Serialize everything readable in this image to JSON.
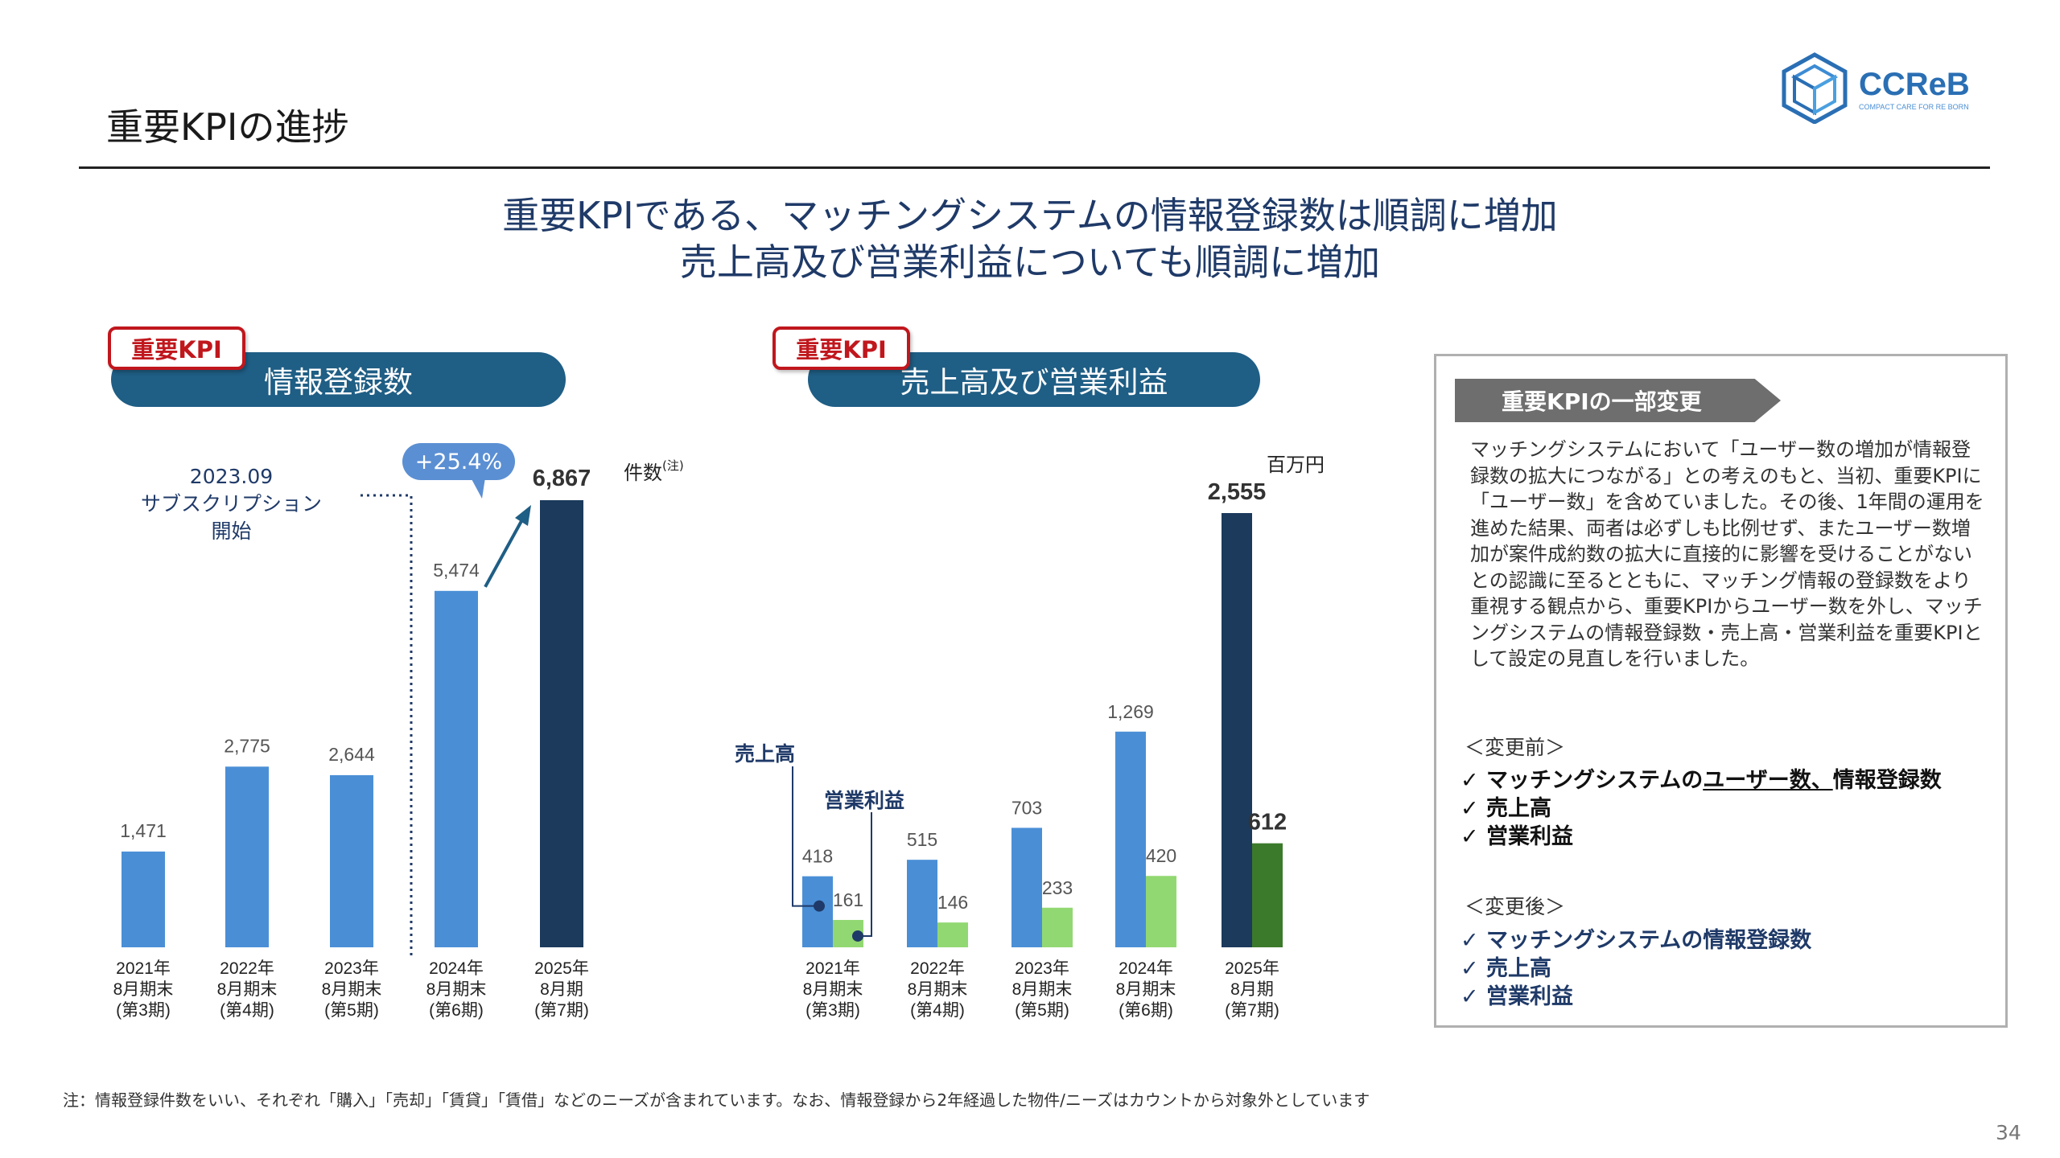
{
  "header": {
    "title": "重要KPIの進捗",
    "logo_text": "CCReB",
    "logo_tagline": "COMPACT CARE FOR RE BORN"
  },
  "headline": {
    "line1": "重要KPIである、マッチングシステムの情報登録数は順調に増加",
    "line2": "売上高及び営業利益についても順調に増加"
  },
  "left_panel": {
    "badge": "重要KPI",
    "title": "情報登録数",
    "unit": "件数",
    "unit_note": "(注)",
    "annotation": "2023.09\nサブスクリプション\n開始",
    "growth": "+25.4%"
  },
  "right_panel": {
    "badge": "重要KPI",
    "title": "売上高及び営業利益",
    "unit": "百万円",
    "callout_sales": "売上高",
    "callout_profit": "営業利益"
  },
  "chart_data": [
    {
      "type": "bar",
      "title": "情報登録数",
      "unit": "件数",
      "categories": [
        [
          "2021年",
          "8月期末",
          "(第3期)"
        ],
        [
          "2022年",
          "8月期末",
          "(第4期)"
        ],
        [
          "2023年",
          "8月期末",
          "(第5期)"
        ],
        [
          "2024年",
          "8月期末",
          "(第6期)"
        ],
        [
          "2025年",
          "8月期",
          "(第7期)"
        ]
      ],
      "series": [
        {
          "values": [
            1471,
            2775,
            2644,
            5474,
            6867
          ],
          "labels": [
            "1,471",
            "2,775",
            "2,644",
            "5,474",
            "6,867"
          ]
        }
      ],
      "colors": {
        "bar": "#4a8fd6",
        "highlight": "#1b3a5c"
      },
      "ylim": [
        0,
        7000
      ]
    },
    {
      "type": "bar",
      "title": "売上高及び営業利益",
      "unit": "百万円",
      "categories": [
        [
          "2021年",
          "8月期末",
          "(第3期)"
        ],
        [
          "2022年",
          "8月期末",
          "(第4期)"
        ],
        [
          "2023年",
          "8月期末",
          "(第5期)"
        ],
        [
          "2024年",
          "8月期末",
          "(第6期)"
        ],
        [
          "2025年",
          "8月期",
          "(第7期)"
        ]
      ],
      "series": [
        {
          "name": "売上高",
          "values": [
            418,
            515,
            703,
            1269,
            2555
          ],
          "labels": [
            "418",
            "515",
            "703",
            "1,269",
            "2,555"
          ]
        },
        {
          "name": "営業利益",
          "values": [
            161,
            146,
            233,
            420,
            612
          ],
          "labels": [
            "161",
            "146",
            "233",
            "420",
            "612"
          ]
        }
      ],
      "colors": {
        "sales": "#4a8fd6",
        "sales_highlight": "#1b3a5c",
        "profit": "#92d872",
        "profit_highlight": "#3b7a2a"
      },
      "ylim": [
        0,
        2600
      ]
    }
  ],
  "info_box": {
    "title": "重要KPIの一部変更",
    "body": "マッチングシステムにおいて「ユーザー数の増加が情報登録数の拡大につながる」との考えのもと、当初、重要KPIに「ユーザー数」を含めていました。その後、1年間の運用を進めた結果、両者は必ずしも比例せず、またユーザー数増加が案件成約数の拡大に直接的に影響を受けることがないとの認識に至るとともに、マッチング情報の登録数をより重視する観点から、重要KPIからユーザー数を外し、マッチングシステムの情報登録数・売上高・営業利益を重要KPIとして設定の見直しを行いました。",
    "before_heading": "＜変更前＞",
    "before_item1_prefix": "マッチングシステムの",
    "before_item1_underlined": "ユーザー数、",
    "before_item1_suffix": "情報登録数",
    "before_item2": "売上高",
    "before_item3": "営業利益",
    "after_heading": "＜変更後＞",
    "after_item1": "マッチングシステムの情報登録数",
    "after_item2": "売上高",
    "after_item3": "営業利益",
    "check": "✓"
  },
  "footnote": "注：情報登録件数をいい、それぞれ「購入」「売却」「賃貸」「賃借」などのニーズが含まれています。なお、情報登録から2年経過した物件/ニーズはカウントから対象外としています",
  "page_number": "34"
}
